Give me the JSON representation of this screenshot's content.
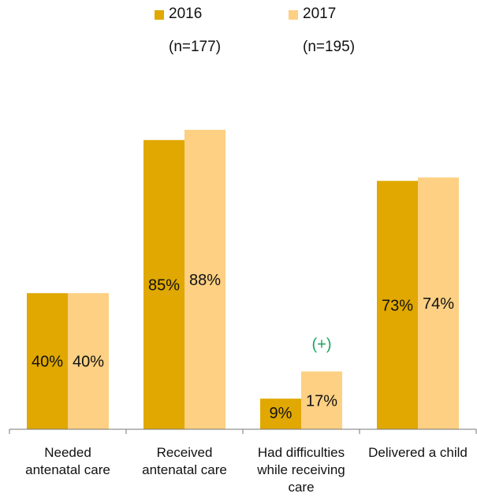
{
  "chart_data": {
    "type": "bar",
    "categories": [
      [
        "Needed",
        "antenatal care"
      ],
      [
        "Received",
        "antenatal care"
      ],
      [
        "Had difficulties",
        "while receiving",
        "care"
      ],
      [
        "Delivered a child"
      ]
    ],
    "series": [
      {
        "name": "2016",
        "n_label": "(n=177)",
        "color": "#e0a800",
        "values": [
          40,
          85,
          9,
          73
        ]
      },
      {
        "name": "2017",
        "n_label": "(n=195)",
        "color": "#fdd083",
        "values": [
          40,
          88,
          17,
          74
        ]
      }
    ],
    "value_suffix": "%",
    "ylim": [
      0,
      100
    ],
    "annotations": [
      {
        "category_index": 2,
        "series_index": 1,
        "text": "(+)",
        "color": "#1aa55a"
      }
    ],
    "legend": "top",
    "grid": false
  }
}
